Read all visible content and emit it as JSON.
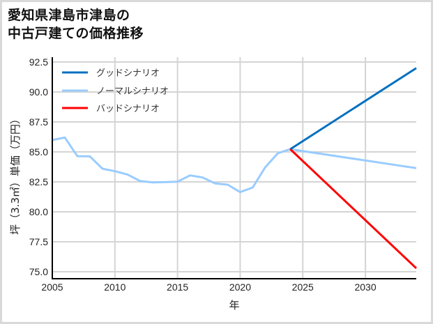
{
  "title": {
    "line1": "愛知県津島市津島の",
    "line2": "中古戸建ての価格推移"
  },
  "chart_data": {
    "type": "line",
    "title": "愛知県津島市津島の中古戸建ての価格推移",
    "xlabel": "年",
    "ylabel": "坪（3.3㎡）単価（万円）",
    "xlim": [
      2005,
      2034.06
    ],
    "ylim": [
      74.42,
      92.91
    ],
    "xticks": [
      2005,
      2010,
      2015,
      2020,
      2025,
      2030
    ],
    "xtick_labels": [
      "2005",
      "2010",
      "2015",
      "2020",
      "2025",
      "2030"
    ],
    "yticks": [
      75.0,
      77.5,
      80.0,
      82.5,
      85.0,
      87.5,
      90.0,
      92.5
    ],
    "ytick_labels": [
      "75.0",
      "77.5",
      "80.0",
      "82.5",
      "85.0",
      "87.5",
      "90.0",
      "92.5"
    ],
    "grid": true,
    "legend_position": "upper left",
    "series": [
      {
        "name": "グッドシナリオ",
        "color": "#0070c0",
        "x": [
          2024,
          2034.06
        ],
        "y": [
          85.23,
          92.0
        ]
      },
      {
        "name": "ノーマルシナリオ",
        "color": "#99ccff",
        "x": [
          2005,
          2006,
          2007,
          2008,
          2009,
          2010,
          2011,
          2012,
          2013,
          2014,
          2015,
          2016,
          2017,
          2018,
          2019,
          2020,
          2021,
          2022,
          2023,
          2024,
          2034.06
        ],
        "y": [
          85.99,
          86.2,
          84.65,
          84.63,
          83.6,
          83.39,
          83.12,
          82.58,
          82.46,
          82.48,
          82.52,
          83.04,
          82.87,
          82.37,
          82.27,
          81.65,
          82.03,
          83.72,
          84.88,
          85.23,
          83.65
        ]
      },
      {
        "name": "バッドシナリオ",
        "color": "#ff0000",
        "x": [
          2024,
          2034.06
        ],
        "y": [
          85.23,
          75.29
        ]
      }
    ]
  }
}
